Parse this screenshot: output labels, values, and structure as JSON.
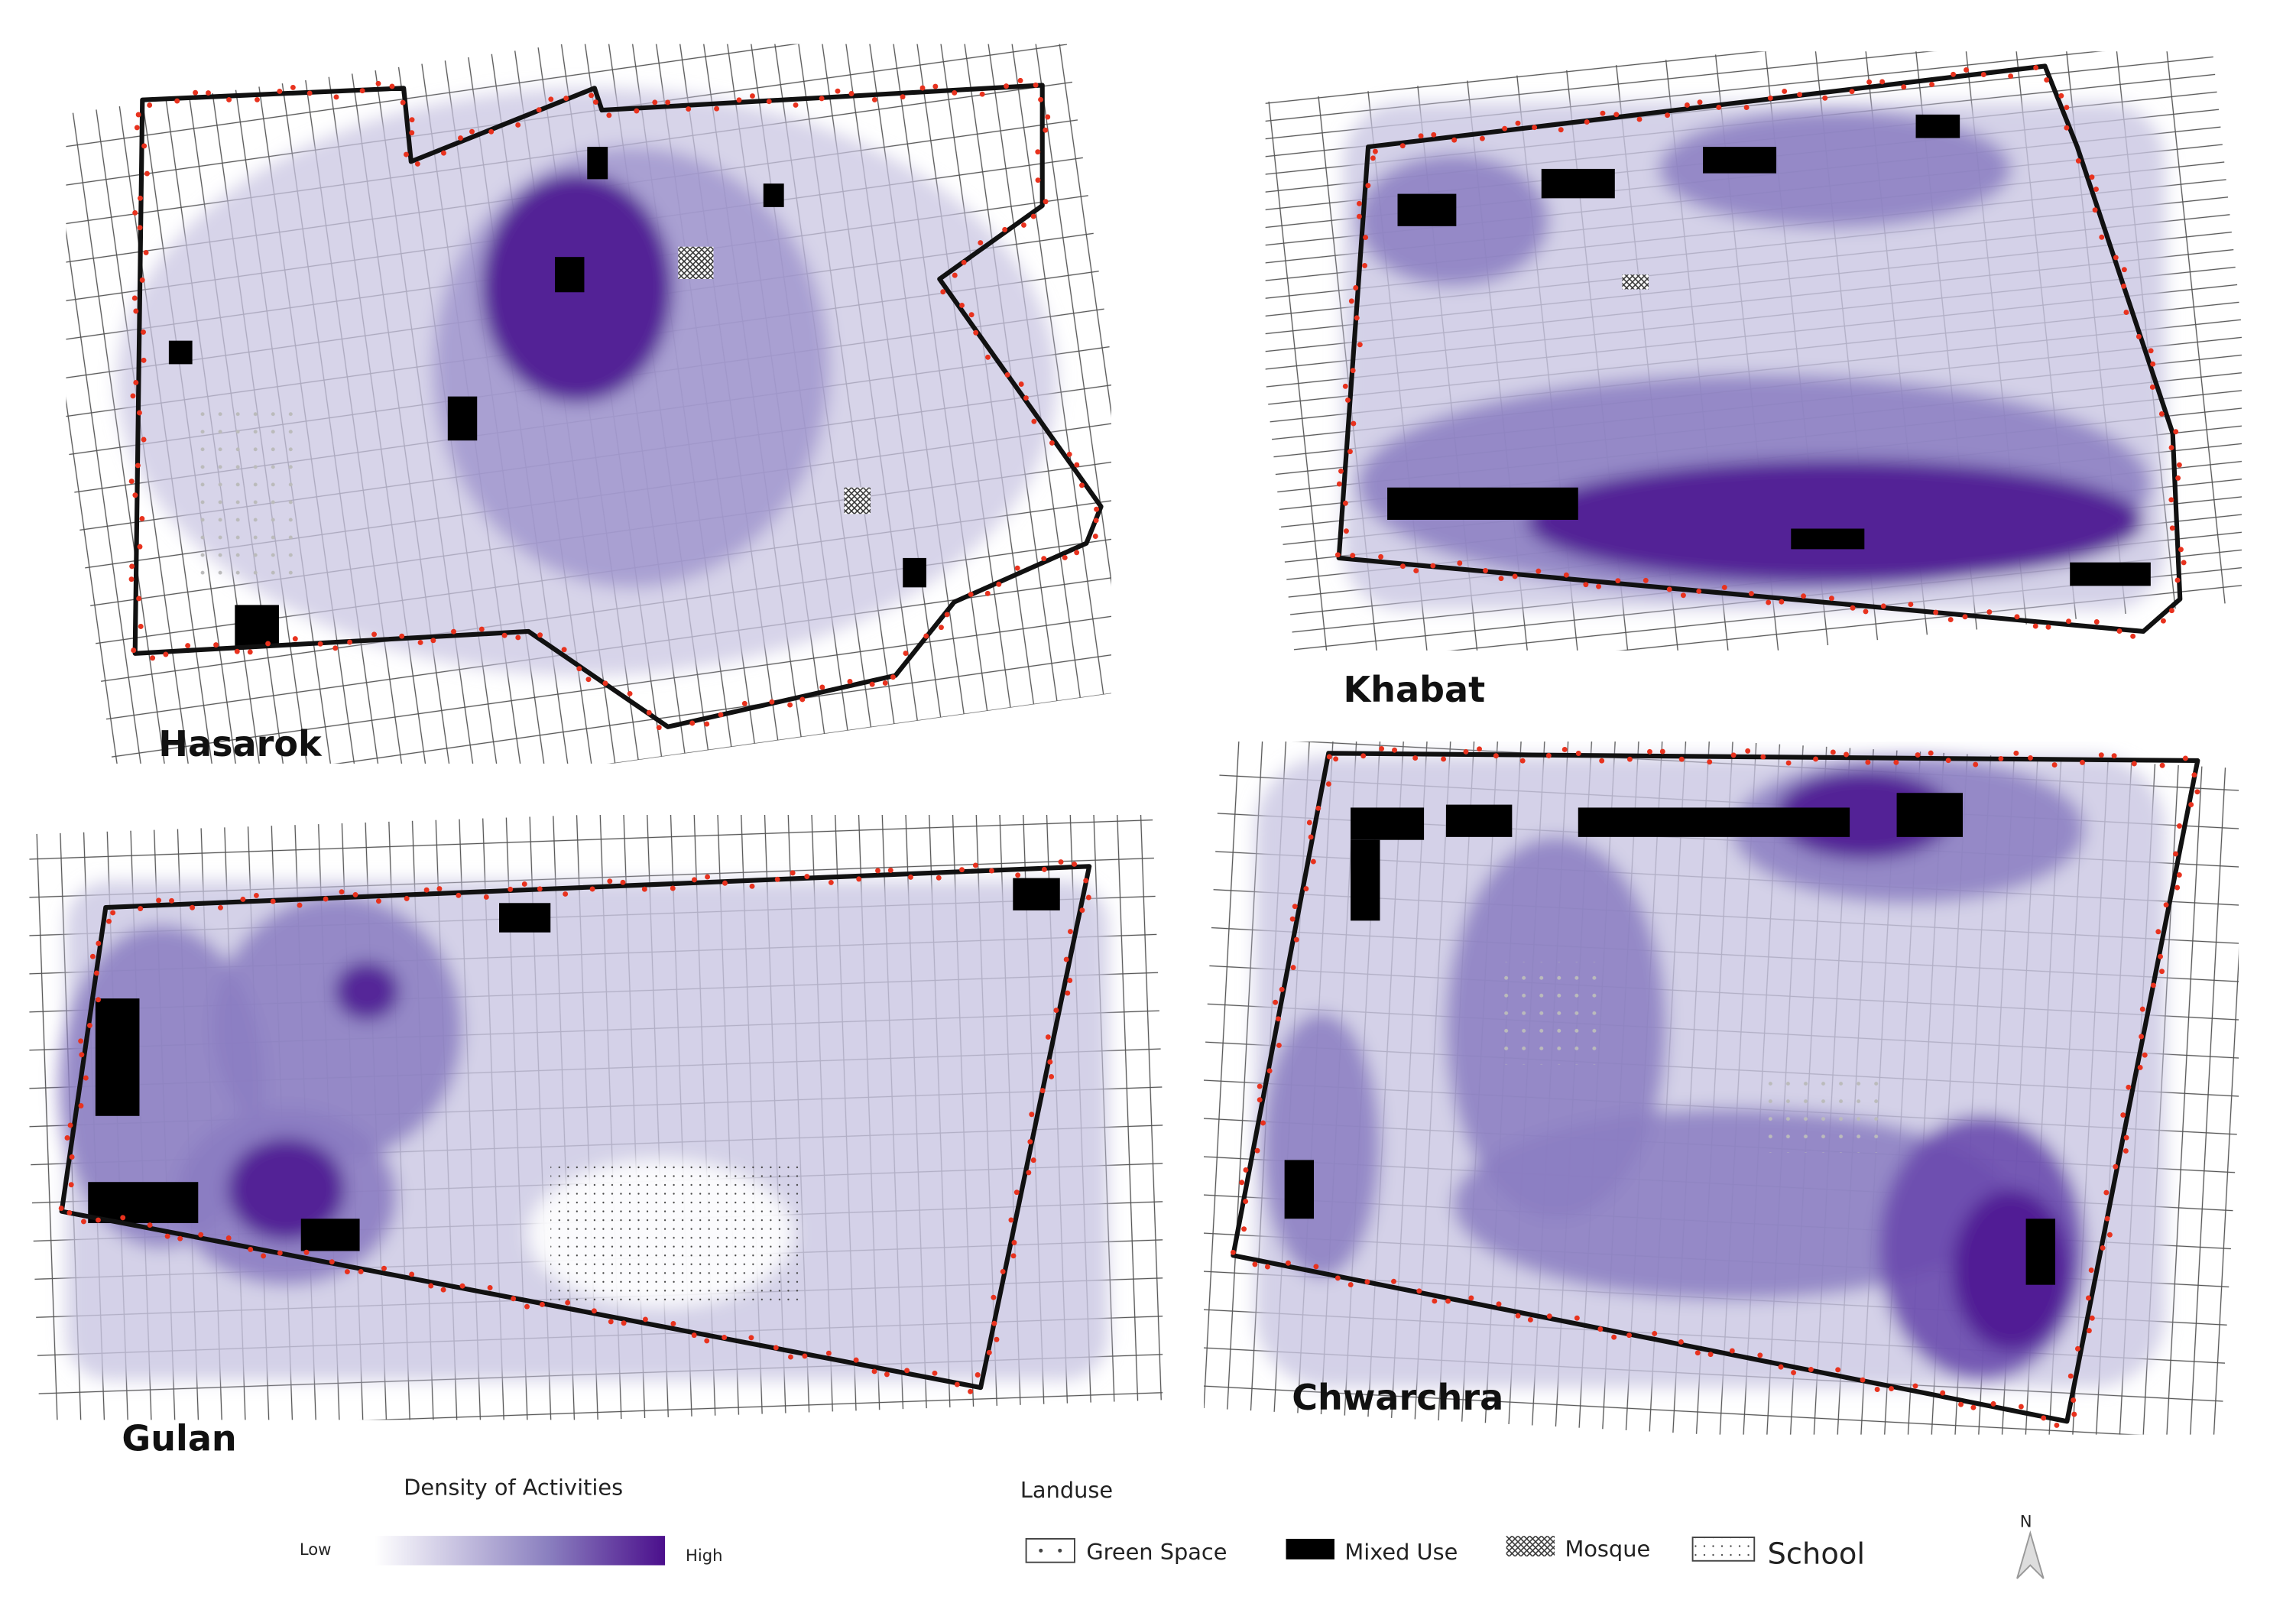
{
  "maps": [
    {
      "name": "Hasarok"
    },
    {
      "name": "Khabat"
    },
    {
      "name": "Gulan"
    },
    {
      "name": "Chwarchra"
    }
  ],
  "legend": {
    "density": {
      "title": "Density of Activities",
      "low": "Low",
      "high": "High"
    },
    "landuse": {
      "title": "Landuse",
      "items": [
        "Green Space",
        "Mixed Use",
        "Mosque",
        "School"
      ]
    }
  },
  "north": "N"
}
